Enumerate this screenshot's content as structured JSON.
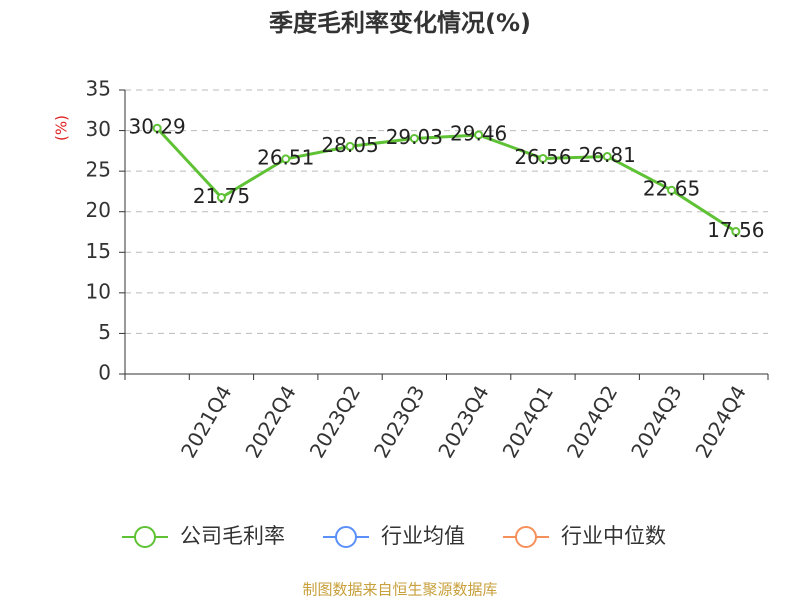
{
  "chart_data": {
    "type": "line",
    "title": "季度毛利率变化情况(%)",
    "y_label": "(%)",
    "categories": [
      null,
      "2021Q4",
      "2022Q4",
      "2023Q2",
      "2023Q3",
      "2023Q4",
      "2024Q1",
      "2024Q2",
      "2024Q3",
      "2024Q4"
    ],
    "series": [
      {
        "name": "公司毛利率",
        "color": "#5ec234",
        "values": [
          30.29,
          21.75,
          26.51,
          28.05,
          29.03,
          29.46,
          26.56,
          26.81,
          22.65,
          17.56
        ]
      },
      {
        "name": "行业均值",
        "color": "#5b8ff9",
        "values": [
          null,
          null,
          null,
          null,
          null,
          null,
          null,
          null,
          null,
          null
        ]
      },
      {
        "name": "行业中位数",
        "color": "#f6905a",
        "values": [
          null,
          null,
          null,
          null,
          null,
          null,
          null,
          null,
          null,
          null
        ]
      }
    ],
    "ylim": [
      0,
      35
    ],
    "yticks": [
      0,
      5,
      10,
      15,
      20,
      25,
      30,
      35
    ],
    "grid": true,
    "source": "制图数据来自恒生聚源数据库"
  }
}
